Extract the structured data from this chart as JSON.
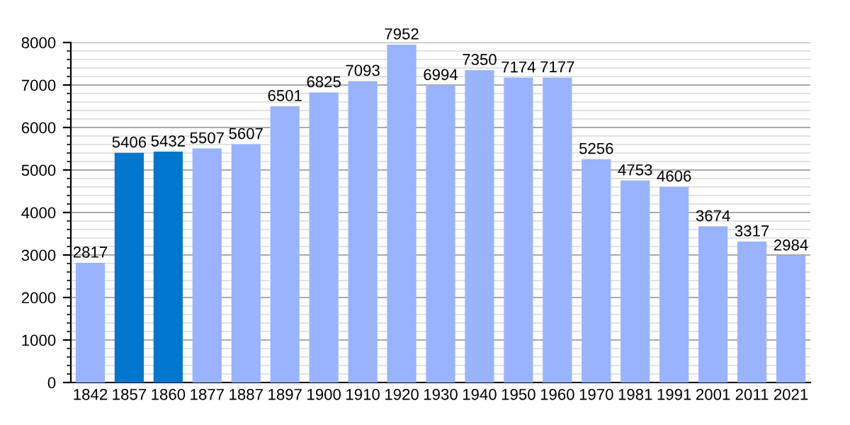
{
  "chart_data": {
    "type": "bar",
    "categories": [
      "1842",
      "1857",
      "1860",
      "1877",
      "1887",
      "1897",
      "1900",
      "1910",
      "1920",
      "1930",
      "1940",
      "1950",
      "1960",
      "1970",
      "1981",
      "1991",
      "2001",
      "2011",
      "2021"
    ],
    "values": [
      2817,
      5406,
      5432,
      5507,
      5607,
      6501,
      6825,
      7093,
      7952,
      6994,
      7350,
      7174,
      7177,
      5256,
      4753,
      4606,
      3674,
      3317,
      2984
    ],
    "colors": [
      "#99b3ff",
      "#0077cc",
      "#0077cc",
      "#99b3ff",
      "#99b3ff",
      "#99b3ff",
      "#99b3ff",
      "#99b3ff",
      "#99b3ff",
      "#99b3ff",
      "#99b3ff",
      "#99b3ff",
      "#99b3ff",
      "#99b3ff",
      "#99b3ff",
      "#99b3ff",
      "#99b3ff",
      "#99b3ff",
      "#99b3ff"
    ],
    "ylim": [
      0,
      8000
    ],
    "yticks": [
      0,
      1000,
      2000,
      3000,
      4000,
      5000,
      6000,
      7000,
      8000
    ],
    "grid": "y",
    "data_labels": true,
    "legend": false
  }
}
